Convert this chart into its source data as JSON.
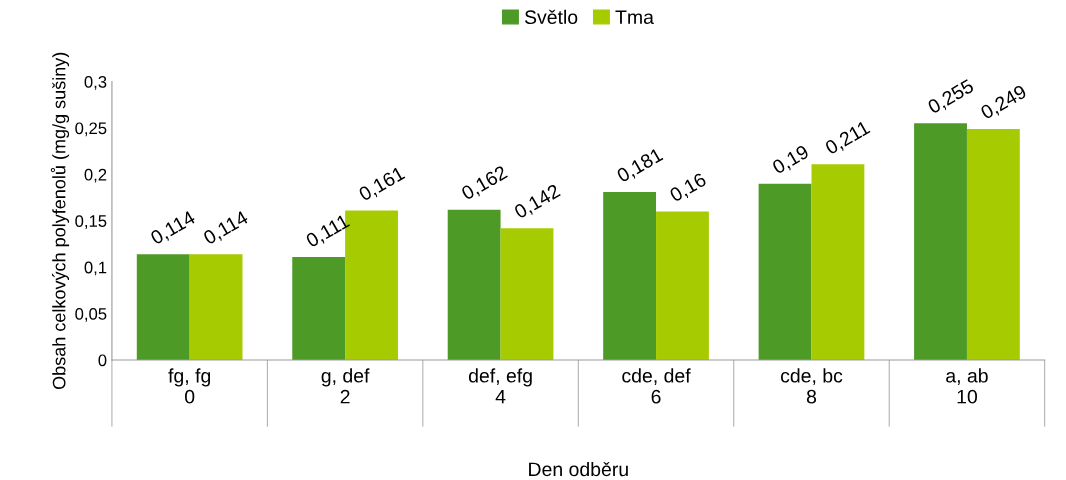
{
  "chart_data": {
    "type": "bar",
    "xlabel": "Den odběru",
    "ylabel": "Obsah celkových polyfenolů (mg/g sušiny)",
    "categories": [
      "fg, fg\n0",
      "g, def\n2",
      "def, efg\n4",
      "cde, def\n6",
      "cde, bc\n8",
      "a, ab\n10"
    ],
    "series": [
      {
        "name": "Světlo",
        "color": "#4e9a26",
        "values": [
          0.114,
          0.111,
          0.162,
          0.181,
          0.19,
          0.255
        ],
        "value_labels": [
          "0,114",
          "0,111",
          "0,162",
          "0,181",
          "0,19",
          "0,255"
        ]
      },
      {
        "name": "Tma",
        "color": "#a6cb00",
        "values": [
          0.114,
          0.161,
          0.142,
          0.16,
          0.211,
          0.249
        ],
        "value_labels": [
          "0,114",
          "0,161",
          "0,142",
          "0,16",
          "0,211",
          "0,249"
        ]
      }
    ],
    "ylim": [
      0,
      0.3
    ],
    "yticks": [
      0,
      {
        "value": 0.05,
        "label": "0,05"
      },
      {
        "value": 0.1,
        "label": "0,1"
      },
      {
        "value": 0.15,
        "label": "0,15"
      },
      {
        "value": 0.2,
        "label": "0,2"
      },
      {
        "value": 0.25,
        "label": "0,25"
      },
      {
        "value": 0.3,
        "label": "0,3"
      }
    ],
    "grid": false,
    "legend": "top"
  }
}
